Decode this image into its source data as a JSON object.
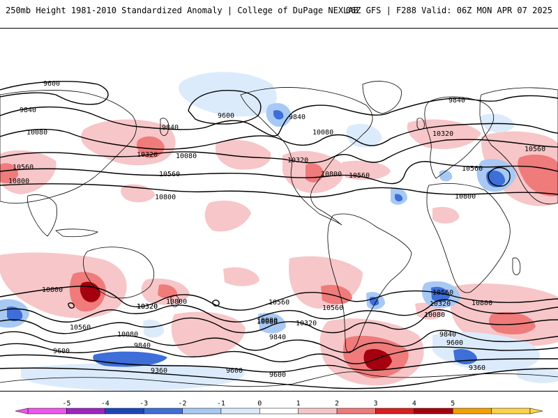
{
  "header": {
    "left_title": "250mb Height 1981-2010 Standardized Anomaly | College of DuPage NEXLAB",
    "right_title": "06Z GFS | F288 Valid: 06Z MON APR 07 2025"
  },
  "contour_labels": [
    "9600",
    "9840",
    "9600",
    "9840",
    "9840",
    "10080",
    "10320",
    "10080",
    "9840",
    "10080",
    "10320",
    "10560",
    "10800",
    "10560",
    "10320",
    "10560",
    "10560",
    "10800",
    "10800",
    "10560",
    "10800",
    "10320",
    "10800",
    "10560",
    "10080",
    "9840",
    "9600",
    "10800",
    "10320",
    "10560",
    "10080",
    "9840",
    "9360",
    "9600",
    "9600",
    "10560",
    "10320",
    "10080",
    "9840",
    "9600",
    "9360",
    "9360",
    "10800",
    "10080",
    "10320",
    "10560"
  ],
  "colorbar": {
    "ticks": [
      "-5",
      "-4",
      "-3",
      "-2",
      "-1",
      "0",
      "1",
      "2",
      "3",
      "4",
      "5"
    ],
    "colors": [
      "#ef55ef",
      "#9b27c0",
      "#1f46b9",
      "#3e6ed8",
      "#a8c9f4",
      "#dcebfb",
      "#ffffff",
      "#f7c6c8",
      "#ef7b7b",
      "#d91f1f",
      "#a5000e",
      "#f2a100",
      "#ffd24a"
    ]
  }
}
